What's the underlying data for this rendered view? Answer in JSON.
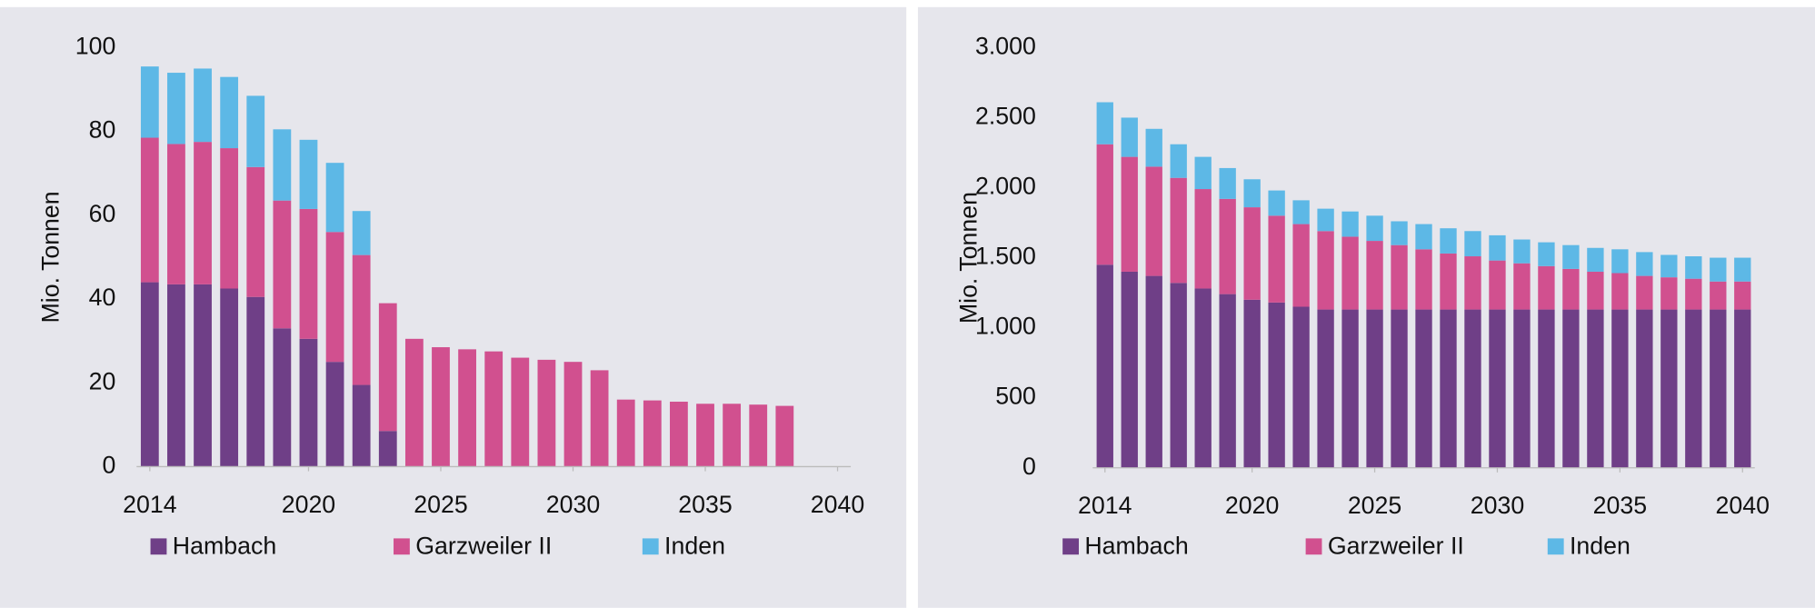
{
  "chart_data": [
    {
      "type": "stacked_bar",
      "y_label": "Mio. Tonnen",
      "x": [
        2014,
        2015,
        2016,
        2017,
        2018,
        2019,
        2020,
        2021,
        2022,
        2023,
        2024,
        2025,
        2026,
        2027,
        2028,
        2029,
        2030,
        2031,
        2032,
        2033,
        2034,
        2035,
        2036,
        2037,
        2038,
        2039,
        2040
      ],
      "xlim": [
        2013.5,
        2040.5
      ],
      "xticks": [
        2014,
        2020,
        2025,
        2030,
        2035,
        2040
      ],
      "ylim": [
        0,
        100
      ],
      "yticks": [
        0,
        20,
        40,
        60,
        80,
        100
      ],
      "series": [
        {
          "name": "Hambach",
          "color": "#6f3f87",
          "values": [
            44,
            43.5,
            43.5,
            42.5,
            40.5,
            33,
            30.5,
            25,
            19.5,
            8.5,
            0,
            0,
            0,
            0,
            0,
            0,
            0,
            0,
            0,
            0,
            0,
            0,
            0,
            0,
            0,
            0,
            0
          ]
        },
        {
          "name": "Garzweiler II",
          "color": "#d1508f",
          "values": [
            34.5,
            33.5,
            34,
            33.5,
            31,
            30.5,
            31,
            31,
            31,
            30.5,
            30.5,
            28.5,
            28,
            27.5,
            26,
            25.5,
            25,
            23,
            16,
            15.8,
            15.5,
            15,
            15,
            14.8,
            14.5,
            0,
            0
          ]
        },
        {
          "name": "Inden",
          "color": "#5db8e6",
          "values": [
            17,
            17,
            17.5,
            17,
            17,
            17,
            16.5,
            16.5,
            10.5,
            0,
            0,
            0,
            0,
            0,
            0,
            0,
            0,
            0,
            0,
            0,
            0,
            0,
            0,
            0,
            0,
            0,
            0
          ]
        }
      ]
    },
    {
      "type": "stacked_bar",
      "y_label": "Mio. Tonnen",
      "x": [
        2014,
        2015,
        2016,
        2017,
        2018,
        2019,
        2020,
        2021,
        2022,
        2023,
        2024,
        2025,
        2026,
        2027,
        2028,
        2029,
        2030,
        2031,
        2032,
        2033,
        2034,
        2035,
        2036,
        2037,
        2038,
        2039,
        2040
      ],
      "xlim": [
        2013.5,
        2040.5
      ],
      "xticks": [
        2014,
        2020,
        2025,
        2030,
        2035,
        2040
      ],
      "ylim": [
        0,
        3000
      ],
      "yticks": [
        0,
        500,
        {
          "value": 1000,
          "label": "1.000"
        },
        {
          "value": 1500,
          "label": "1.500"
        },
        {
          "value": 2000,
          "label": "2.000"
        },
        {
          "value": 2500,
          "label": "2.500"
        },
        {
          "value": 3000,
          "label": "3.000"
        }
      ],
      "series": [
        {
          "name": "Hambach",
          "color": "#6f3f87",
          "values": [
            1450,
            1400,
            1370,
            1320,
            1280,
            1240,
            1200,
            1180,
            1150,
            1130,
            1130,
            1130,
            1130,
            1130,
            1130,
            1130,
            1130,
            1130,
            1130,
            1130,
            1130,
            1130,
            1130,
            1130,
            1130,
            1130,
            1130
          ]
        },
        {
          "name": "Garzweiler II",
          "color": "#d1508f",
          "values": [
            860,
            820,
            780,
            750,
            710,
            680,
            660,
            620,
            590,
            560,
            520,
            490,
            460,
            430,
            400,
            380,
            350,
            330,
            310,
            290,
            270,
            260,
            240,
            230,
            220,
            200,
            200
          ]
        },
        {
          "name": "Inden",
          "color": "#5db8e6",
          "values": [
            300,
            280,
            270,
            240,
            230,
            220,
            200,
            180,
            170,
            160,
            180,
            180,
            170,
            180,
            180,
            180,
            180,
            170,
            170,
            170,
            170,
            170,
            170,
            160,
            160,
            170,
            170
          ]
        }
      ]
    }
  ]
}
